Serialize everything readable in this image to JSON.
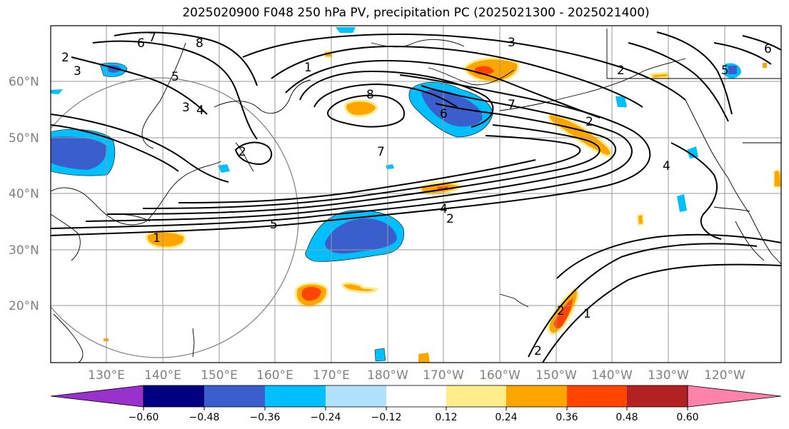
{
  "title": "2025020900 F048 250 hPa PV, precipitation PC (2025021300 - 2025021400)",
  "lat_labels": [
    "60°N",
    "50°N",
    "40°N",
    "30°N",
    "20°N"
  ],
  "lon_labels": [
    "130°E",
    "140°E",
    "150°E",
    "160°E",
    "170°E",
    "180°W",
    "170°W",
    "160°W",
    "150°W",
    "140°W",
    "130°W",
    "120°W"
  ],
  "contour_labels": [
    "2",
    "3",
    "6",
    "7",
    "8",
    "5",
    "3",
    "4",
    "1",
    "8",
    "6",
    "7",
    "3",
    "2",
    "5",
    "6",
    "2",
    "7",
    "4",
    "2",
    "5",
    "1",
    "2",
    "1",
    "2",
    "2",
    "4"
  ],
  "colorbar": {
    "ticks": [
      "−0.60",
      "−0.48",
      "−0.36",
      "−0.24",
      "−0.12",
      "0.12",
      "0.24",
      "0.36",
      "0.48",
      "0.60"
    ],
    "colors": [
      "#9932CC",
      "#000080",
      "#3A5FCD",
      "#00BFFF",
      "#B0E2FF",
      "#FFFFFF",
      "#FFEC8B",
      "#FFA500",
      "#FF4500",
      "#B22222",
      "#FF82AB"
    ]
  },
  "colors": {
    "grid": "#9a9a9a",
    "contour": "#000000",
    "coast": "#000000",
    "labels": "#808080"
  }
}
